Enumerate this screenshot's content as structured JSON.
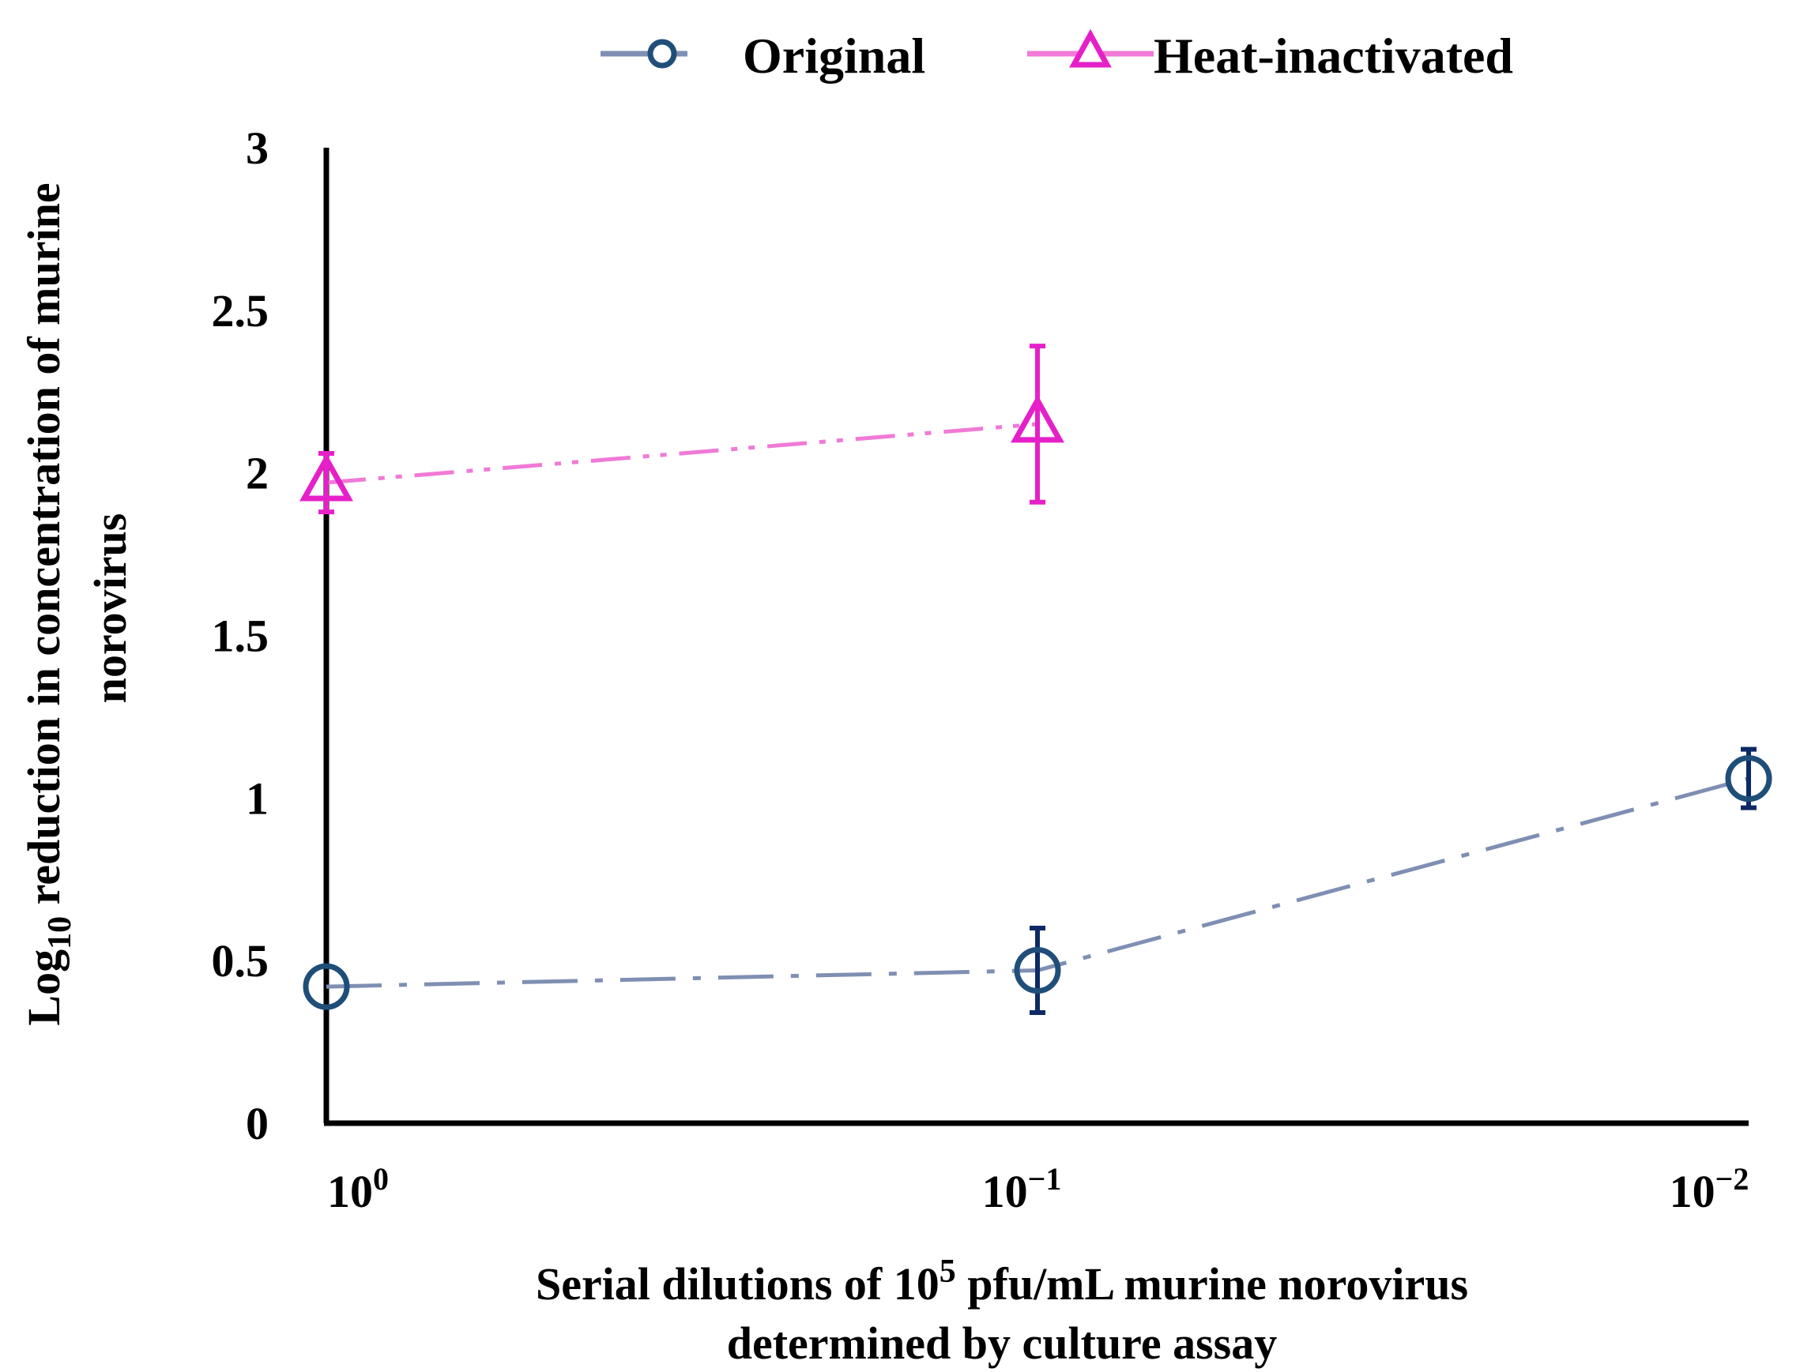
{
  "chart_data": {
    "type": "line",
    "title": "",
    "categories": [
      "10^0",
      "10^-1",
      "10^-2"
    ],
    "x_tick_labels": [
      {
        "base": "10",
        "exp": "0"
      },
      {
        "base": "10",
        "exp": "−1"
      },
      {
        "base": "10",
        "exp": "−2"
      }
    ],
    "y_ticks": [
      "0",
      "0.5",
      "1",
      "1.5",
      "2",
      "2.5",
      "3"
    ],
    "ylim": [
      0,
      3
    ],
    "ylabel": {
      "line1_prefix": "Log",
      "line1_sub": "10",
      "line1_suffix": " reduction  in concentration  of murine",
      "line2": "norovirus"
    },
    "xlabel": {
      "line1_prefix": "Serial dilutions  of 10",
      "line1_sup": "5",
      "line1_suffix": " pfu/mL  murine  norovirus",
      "line2": "determined  by culture  assay"
    },
    "legend": {
      "position": "top-center"
    },
    "series": [
      {
        "name": "Original",
        "color": "#1f4e79",
        "line_color": "#7f8fb3",
        "marker": "circle",
        "values": [
          0.42,
          0.47,
          1.06
        ],
        "errors": [
          null,
          0.13,
          0.09
        ]
      },
      {
        "name": "Heat-inactivated",
        "color": "#e620c8",
        "line_color": "#f07ad6",
        "marker": "triangle",
        "values": [
          1.97,
          2.15,
          null
        ],
        "errors": [
          0.09,
          0.24,
          null
        ]
      }
    ]
  }
}
